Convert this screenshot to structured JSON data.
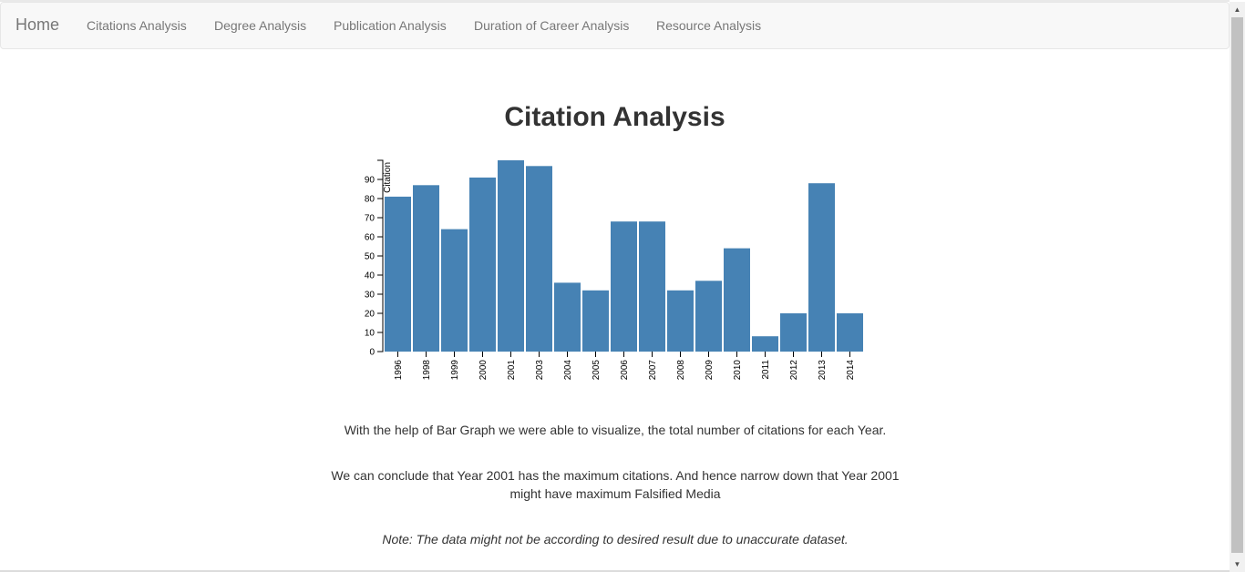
{
  "navbar": {
    "brand": "Home",
    "links": [
      {
        "label": "Citations Analysis"
      },
      {
        "label": "Degree Analysis"
      },
      {
        "label": "Publication Analysis"
      },
      {
        "label": "Duration of Career Analysis"
      },
      {
        "label": "Resource Analysis"
      }
    ]
  },
  "main": {
    "title": "Citation Analysis",
    "paragraph1": "With the help of Bar Graph we were able to visualize, the total number of citations for each Year.",
    "paragraph2": "We can conclude that Year 2001 has the maximum citations. And hence narrow down that Year 2001 might have maximum Falsified Media",
    "note": "Note: The data might not be according to desired result due to unaccurate dataset."
  },
  "colors": {
    "bar": "#4682b4",
    "navbar_bg": "#f8f8f8",
    "nav_text": "#777777"
  },
  "chart_data": {
    "type": "bar",
    "title": "",
    "xlabel": "",
    "ylabel": "Citation",
    "categories": [
      "1996",
      "1998",
      "1999",
      "2000",
      "2001",
      "2003",
      "2004",
      "2005",
      "2006",
      "2007",
      "2008",
      "2009",
      "2010",
      "2011",
      "2012",
      "2013",
      "2014"
    ],
    "values": [
      81,
      87,
      64,
      91,
      100,
      97,
      36,
      32,
      68,
      68,
      32,
      37,
      54,
      8,
      20,
      88,
      20
    ],
    "ylim": [
      0,
      100
    ],
    "yticks": [
      0,
      10,
      20,
      30,
      40,
      50,
      60,
      70,
      80,
      90
    ],
    "grid": false
  }
}
